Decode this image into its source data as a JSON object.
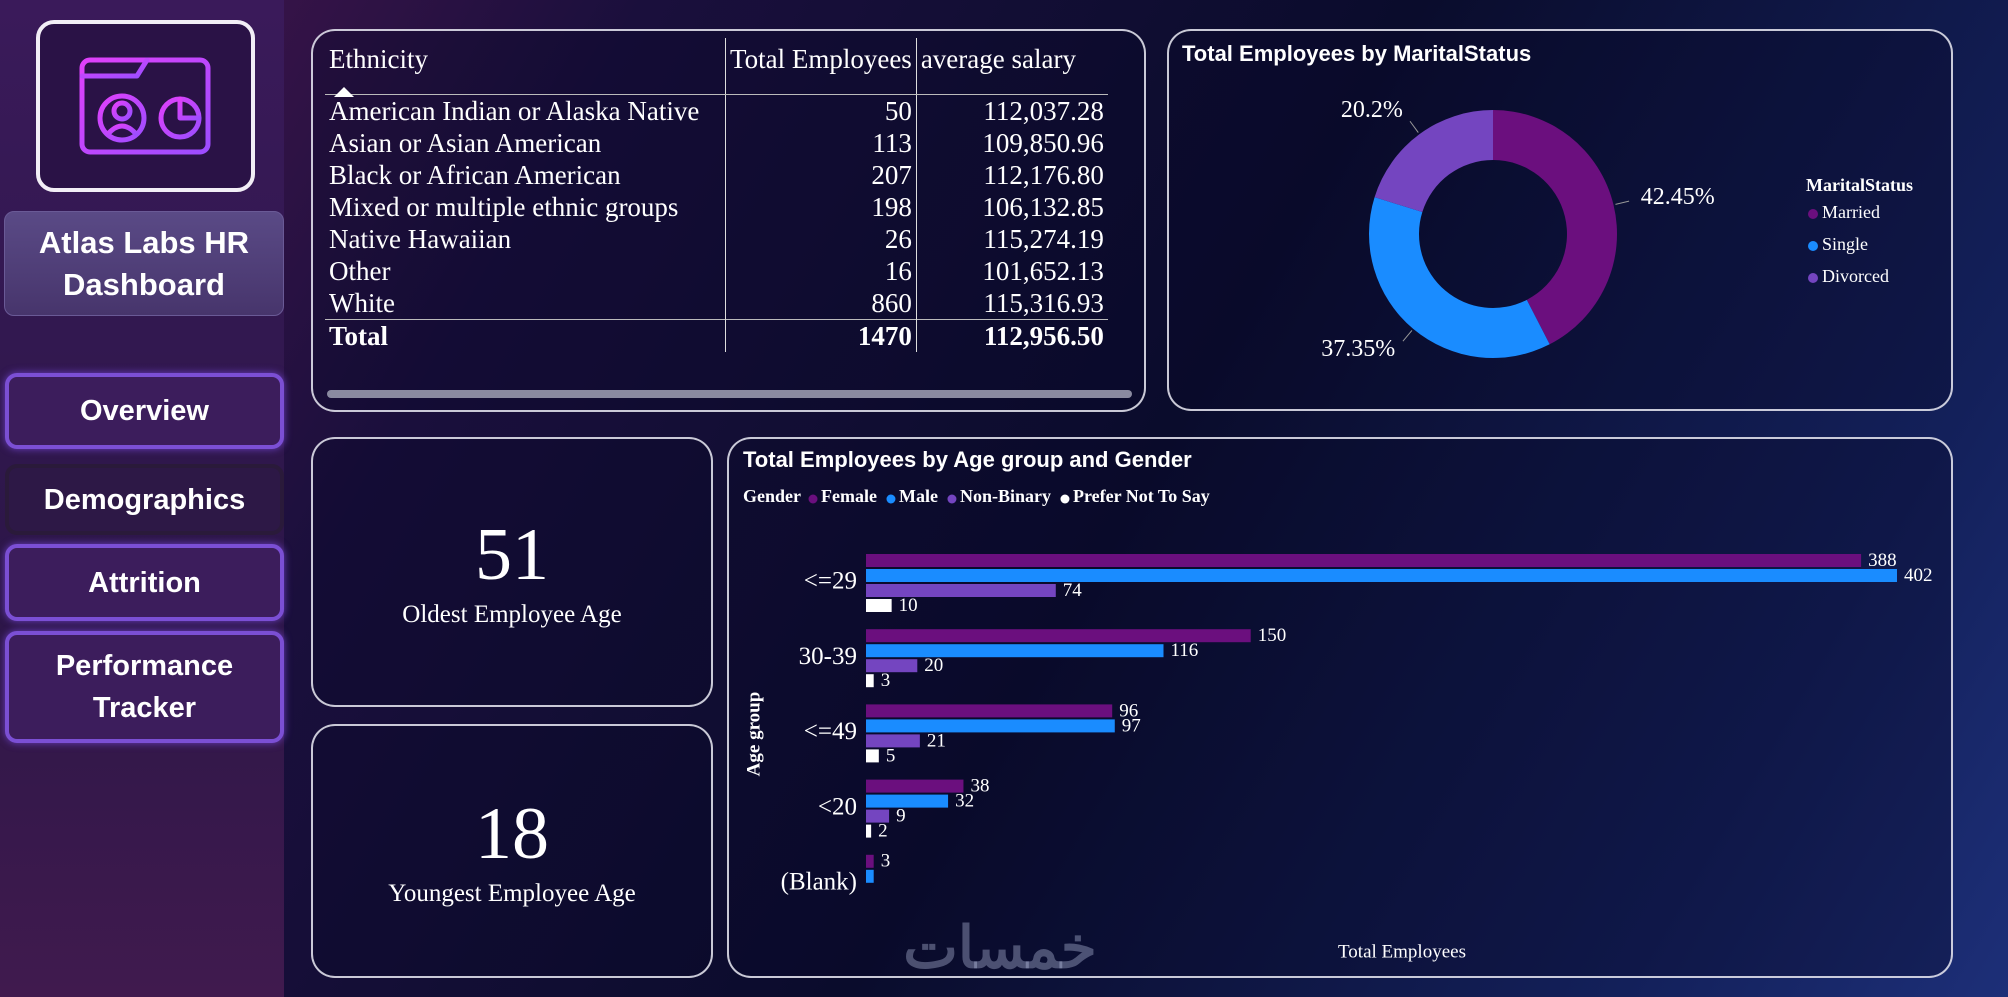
{
  "sidebar": {
    "title": "Atlas Labs HR Dashboard",
    "nav": [
      "Overview",
      "Demographics",
      "Attrition",
      "Performance Tracker"
    ]
  },
  "table": {
    "columns": [
      "Ethnicity",
      "Total Employees",
      "average salary"
    ],
    "rows": [
      [
        "American Indian or Alaska Native",
        "50",
        "112,037.28"
      ],
      [
        "Asian or Asian American",
        "113",
        "109,850.96"
      ],
      [
        "Black or African American",
        "207",
        "112,176.80"
      ],
      [
        "Mixed or multiple ethnic groups",
        "198",
        "106,132.85"
      ],
      [
        "Native Hawaiian",
        "26",
        "115,274.19"
      ],
      [
        "Other",
        "16",
        "101,652.13"
      ],
      [
        "White",
        "860",
        "115,316.93"
      ]
    ],
    "total": [
      "Total",
      "1470",
      "112,956.50"
    ]
  },
  "cards": [
    {
      "value": 51,
      "label": "Oldest Employee Age"
    },
    {
      "value": 18,
      "label": "Youngest Employee Age"
    }
  ],
  "watermark": "خمسات",
  "chart_data": [
    {
      "type": "pie",
      "title": "Total Employees by MaritalStatus",
      "legend_title": "MaritalStatus",
      "legend": "right",
      "categories": [
        "Married",
        "Single",
        "Divorced"
      ],
      "values": [
        42.45,
        37.35,
        20.2
      ],
      "value_labels": [
        "42.45%",
        "37.35%",
        "20.2%"
      ],
      "colors": [
        "#6b0f7e",
        "#1a8cff",
        "#7445c0"
      ]
    },
    {
      "type": "bar",
      "orientation": "horizontal",
      "title": "Total Employees by Age group and Gender",
      "legend_title": "Gender",
      "legend": "top",
      "xlabel": "Total Employees",
      "ylabel": "Age group",
      "xlim": [
        0,
        402
      ],
      "categories": [
        "<=29",
        "30-39",
        "<=49",
        "<20",
        "(Blank)"
      ],
      "series": [
        {
          "name": "Female",
          "color": "#6b0f7e",
          "values": [
            388,
            150,
            96,
            38,
            3
          ]
        },
        {
          "name": "Male",
          "color": "#1a8cff",
          "values": [
            402,
            116,
            97,
            32,
            3
          ],
          "value_labels": [
            "402",
            "116",
            "97",
            "32",
            null
          ]
        },
        {
          "name": "Non-Binary",
          "color": "#7445c0",
          "values": [
            74,
            20,
            21,
            9,
            null
          ]
        },
        {
          "name": "Prefer Not To Say",
          "color": "#ffffff",
          "values": [
            10,
            3,
            5,
            2,
            null
          ]
        }
      ]
    }
  ]
}
